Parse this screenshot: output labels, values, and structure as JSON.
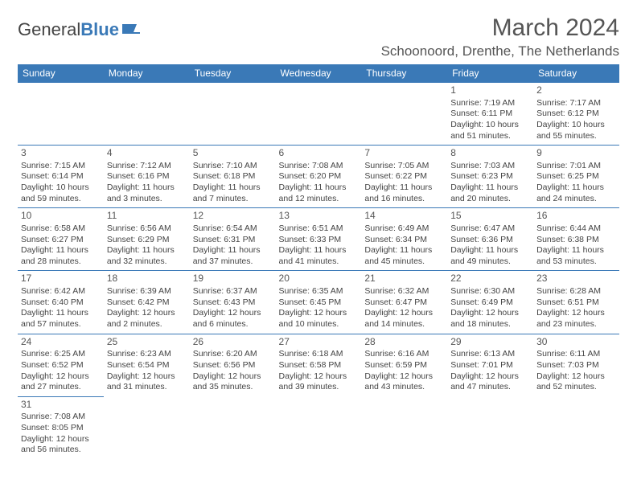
{
  "logo": {
    "part1": "General",
    "part2": "Blue"
  },
  "title": "March 2024",
  "location": "Schoonoord, Drenthe, The Netherlands",
  "weekdays": [
    "Sunday",
    "Monday",
    "Tuesday",
    "Wednesday",
    "Thursday",
    "Friday",
    "Saturday"
  ],
  "colors": {
    "header_bg": "#3a79b7",
    "header_text": "#ffffff",
    "body_text": "#444444",
    "border": "#3a79b7",
    "title_text": "#555555"
  },
  "typography": {
    "month_title_fontsize": 30,
    "location_fontsize": 17,
    "weekday_fontsize": 12,
    "cell_fontsize": 10.5,
    "daynum_fontsize": 12
  },
  "weeks": [
    [
      null,
      null,
      null,
      null,
      null,
      {
        "day": "1",
        "sunrise": "Sunrise: 7:19 AM",
        "sunset": "Sunset: 6:11 PM",
        "daylight1": "Daylight: 10 hours",
        "daylight2": "and 51 minutes."
      },
      {
        "day": "2",
        "sunrise": "Sunrise: 7:17 AM",
        "sunset": "Sunset: 6:12 PM",
        "daylight1": "Daylight: 10 hours",
        "daylight2": "and 55 minutes."
      }
    ],
    [
      {
        "day": "3",
        "sunrise": "Sunrise: 7:15 AM",
        "sunset": "Sunset: 6:14 PM",
        "daylight1": "Daylight: 10 hours",
        "daylight2": "and 59 minutes."
      },
      {
        "day": "4",
        "sunrise": "Sunrise: 7:12 AM",
        "sunset": "Sunset: 6:16 PM",
        "daylight1": "Daylight: 11 hours",
        "daylight2": "and 3 minutes."
      },
      {
        "day": "5",
        "sunrise": "Sunrise: 7:10 AM",
        "sunset": "Sunset: 6:18 PM",
        "daylight1": "Daylight: 11 hours",
        "daylight2": "and 7 minutes."
      },
      {
        "day": "6",
        "sunrise": "Sunrise: 7:08 AM",
        "sunset": "Sunset: 6:20 PM",
        "daylight1": "Daylight: 11 hours",
        "daylight2": "and 12 minutes."
      },
      {
        "day": "7",
        "sunrise": "Sunrise: 7:05 AM",
        "sunset": "Sunset: 6:22 PM",
        "daylight1": "Daylight: 11 hours",
        "daylight2": "and 16 minutes."
      },
      {
        "day": "8",
        "sunrise": "Sunrise: 7:03 AM",
        "sunset": "Sunset: 6:23 PM",
        "daylight1": "Daylight: 11 hours",
        "daylight2": "and 20 minutes."
      },
      {
        "day": "9",
        "sunrise": "Sunrise: 7:01 AM",
        "sunset": "Sunset: 6:25 PM",
        "daylight1": "Daylight: 11 hours",
        "daylight2": "and 24 minutes."
      }
    ],
    [
      {
        "day": "10",
        "sunrise": "Sunrise: 6:58 AM",
        "sunset": "Sunset: 6:27 PM",
        "daylight1": "Daylight: 11 hours",
        "daylight2": "and 28 minutes."
      },
      {
        "day": "11",
        "sunrise": "Sunrise: 6:56 AM",
        "sunset": "Sunset: 6:29 PM",
        "daylight1": "Daylight: 11 hours",
        "daylight2": "and 32 minutes."
      },
      {
        "day": "12",
        "sunrise": "Sunrise: 6:54 AM",
        "sunset": "Sunset: 6:31 PM",
        "daylight1": "Daylight: 11 hours",
        "daylight2": "and 37 minutes."
      },
      {
        "day": "13",
        "sunrise": "Sunrise: 6:51 AM",
        "sunset": "Sunset: 6:33 PM",
        "daylight1": "Daylight: 11 hours",
        "daylight2": "and 41 minutes."
      },
      {
        "day": "14",
        "sunrise": "Sunrise: 6:49 AM",
        "sunset": "Sunset: 6:34 PM",
        "daylight1": "Daylight: 11 hours",
        "daylight2": "and 45 minutes."
      },
      {
        "day": "15",
        "sunrise": "Sunrise: 6:47 AM",
        "sunset": "Sunset: 6:36 PM",
        "daylight1": "Daylight: 11 hours",
        "daylight2": "and 49 minutes."
      },
      {
        "day": "16",
        "sunrise": "Sunrise: 6:44 AM",
        "sunset": "Sunset: 6:38 PM",
        "daylight1": "Daylight: 11 hours",
        "daylight2": "and 53 minutes."
      }
    ],
    [
      {
        "day": "17",
        "sunrise": "Sunrise: 6:42 AM",
        "sunset": "Sunset: 6:40 PM",
        "daylight1": "Daylight: 11 hours",
        "daylight2": "and 57 minutes."
      },
      {
        "day": "18",
        "sunrise": "Sunrise: 6:39 AM",
        "sunset": "Sunset: 6:42 PM",
        "daylight1": "Daylight: 12 hours",
        "daylight2": "and 2 minutes."
      },
      {
        "day": "19",
        "sunrise": "Sunrise: 6:37 AM",
        "sunset": "Sunset: 6:43 PM",
        "daylight1": "Daylight: 12 hours",
        "daylight2": "and 6 minutes."
      },
      {
        "day": "20",
        "sunrise": "Sunrise: 6:35 AM",
        "sunset": "Sunset: 6:45 PM",
        "daylight1": "Daylight: 12 hours",
        "daylight2": "and 10 minutes."
      },
      {
        "day": "21",
        "sunrise": "Sunrise: 6:32 AM",
        "sunset": "Sunset: 6:47 PM",
        "daylight1": "Daylight: 12 hours",
        "daylight2": "and 14 minutes."
      },
      {
        "day": "22",
        "sunrise": "Sunrise: 6:30 AM",
        "sunset": "Sunset: 6:49 PM",
        "daylight1": "Daylight: 12 hours",
        "daylight2": "and 18 minutes."
      },
      {
        "day": "23",
        "sunrise": "Sunrise: 6:28 AM",
        "sunset": "Sunset: 6:51 PM",
        "daylight1": "Daylight: 12 hours",
        "daylight2": "and 23 minutes."
      }
    ],
    [
      {
        "day": "24",
        "sunrise": "Sunrise: 6:25 AM",
        "sunset": "Sunset: 6:52 PM",
        "daylight1": "Daylight: 12 hours",
        "daylight2": "and 27 minutes."
      },
      {
        "day": "25",
        "sunrise": "Sunrise: 6:23 AM",
        "sunset": "Sunset: 6:54 PM",
        "daylight1": "Daylight: 12 hours",
        "daylight2": "and 31 minutes."
      },
      {
        "day": "26",
        "sunrise": "Sunrise: 6:20 AM",
        "sunset": "Sunset: 6:56 PM",
        "daylight1": "Daylight: 12 hours",
        "daylight2": "and 35 minutes."
      },
      {
        "day": "27",
        "sunrise": "Sunrise: 6:18 AM",
        "sunset": "Sunset: 6:58 PM",
        "daylight1": "Daylight: 12 hours",
        "daylight2": "and 39 minutes."
      },
      {
        "day": "28",
        "sunrise": "Sunrise: 6:16 AM",
        "sunset": "Sunset: 6:59 PM",
        "daylight1": "Daylight: 12 hours",
        "daylight2": "and 43 minutes."
      },
      {
        "day": "29",
        "sunrise": "Sunrise: 6:13 AM",
        "sunset": "Sunset: 7:01 PM",
        "daylight1": "Daylight: 12 hours",
        "daylight2": "and 47 minutes."
      },
      {
        "day": "30",
        "sunrise": "Sunrise: 6:11 AM",
        "sunset": "Sunset: 7:03 PM",
        "daylight1": "Daylight: 12 hours",
        "daylight2": "and 52 minutes."
      }
    ],
    [
      {
        "day": "31",
        "sunrise": "Sunrise: 7:08 AM",
        "sunset": "Sunset: 8:05 PM",
        "daylight1": "Daylight: 12 hours",
        "daylight2": "and 56 minutes."
      },
      null,
      null,
      null,
      null,
      null,
      null
    ]
  ]
}
